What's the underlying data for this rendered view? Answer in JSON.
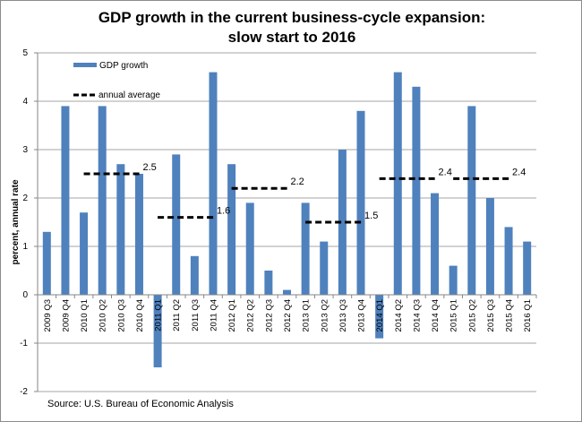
{
  "chart_data": {
    "type": "bar",
    "title": "GDP growth in the current business-cycle expansion:",
    "subtitle": "slow start to 2016",
    "xlabel": "",
    "ylabel": "percent, annual rate",
    "ylim": [
      -2,
      5
    ],
    "yticks": [
      -2,
      -1,
      0,
      1,
      2,
      3,
      4,
      5
    ],
    "grid": true,
    "legend_position": "top-left",
    "categories": [
      "2009 Q3",
      "2009 Q4",
      "2010 Q1",
      "2010 Q2",
      "2010 Q3",
      "2010 Q4",
      "2011 Q1",
      "2011 Q2",
      "2011 Q3",
      "2011 Q4",
      "2012 Q1",
      "2012 Q2",
      "2012 Q3",
      "2012 Q4",
      "2013 Q1",
      "2013 Q2",
      "2013 Q3",
      "2013 Q4",
      "2014 Q1",
      "2014 Q2",
      "2014 Q3",
      "2014 Q4",
      "2015 Q1",
      "2015 Q2",
      "2015 Q3",
      "2015 Q4",
      "2016 Q1"
    ],
    "series": [
      {
        "name": "GDP growth",
        "type": "bar",
        "color": "#4f81bd",
        "values": [
          1.3,
          3.9,
          1.7,
          3.9,
          2.7,
          2.5,
          -1.5,
          2.9,
          0.8,
          4.6,
          2.7,
          1.9,
          0.5,
          0.1,
          1.9,
          1.1,
          3.0,
          3.8,
          -0.9,
          4.6,
          4.3,
          2.1,
          0.6,
          3.9,
          2.0,
          1.4,
          1.1
        ]
      }
    ],
    "annual_averages": {
      "name": "annual average",
      "color": "#000000",
      "segments": [
        {
          "label": "2.5",
          "value": 2.5,
          "start": "2010 Q1",
          "end": "2010 Q4"
        },
        {
          "label": "1.6",
          "value": 1.6,
          "start": "2011 Q1",
          "end": "2011 Q4"
        },
        {
          "label": "2.2",
          "value": 2.2,
          "start": "2012 Q1",
          "end": "2012 Q4"
        },
        {
          "label": "1.5",
          "value": 1.5,
          "start": "2013 Q1",
          "end": "2013 Q4"
        },
        {
          "label": "2.4",
          "value": 2.4,
          "start": "2014 Q1",
          "end": "2014 Q4"
        },
        {
          "label": "2.4",
          "value": 2.4,
          "start": "2015 Q1",
          "end": "2015 Q4"
        }
      ]
    },
    "source": "Source: U.S. Bureau of Economic Analysis"
  }
}
